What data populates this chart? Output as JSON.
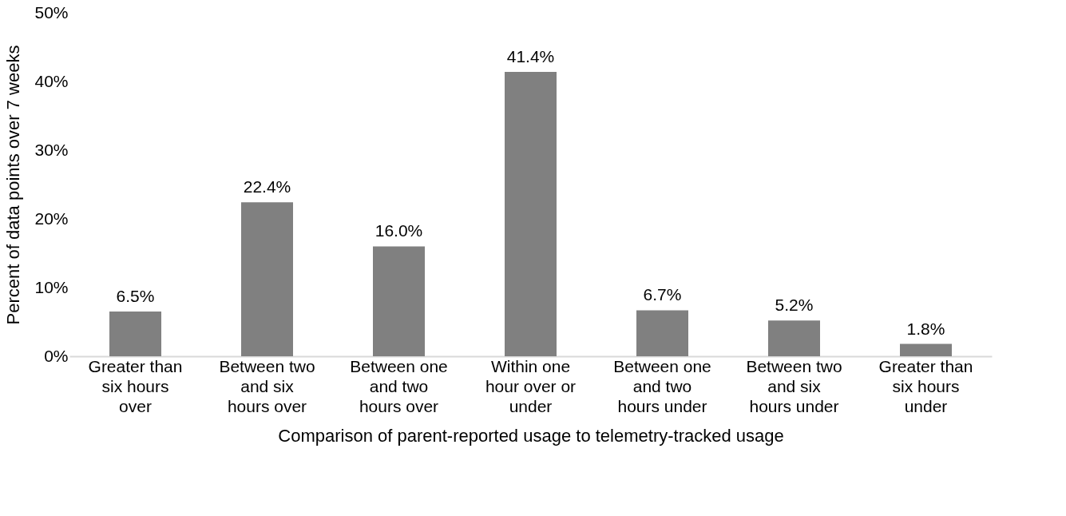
{
  "chart_data": {
    "type": "bar",
    "xlabel": "Comparison of parent-reported usage to telemetry-tracked usage",
    "ylabel": "Percent of data points over 7 weeks",
    "categories": [
      "Greater than six hours over",
      "Between two and six hours over",
      "Between one and two hours over",
      "Within one hour over or under",
      "Between one and two hours under",
      "Between two and six hours under",
      "Greater than six hours under"
    ],
    "values": [
      6.5,
      22.4,
      16.0,
      41.4,
      6.7,
      5.2,
      1.8
    ],
    "value_labels": [
      "6.5%",
      "22.4%",
      "16.0%",
      "41.4%",
      "6.7%",
      "5.2%",
      "1.8%"
    ],
    "color": "#808080",
    "ylim": [
      0,
      50
    ],
    "yticks": [
      {
        "value": 0,
        "label": "0%"
      },
      {
        "value": 10,
        "label": "10%"
      },
      {
        "value": 20,
        "label": "20%"
      },
      {
        "value": 30,
        "label": "30%"
      },
      {
        "value": 40,
        "label": "40%"
      },
      {
        "value": 50,
        "label": "50%"
      }
    ],
    "grid": false
  }
}
